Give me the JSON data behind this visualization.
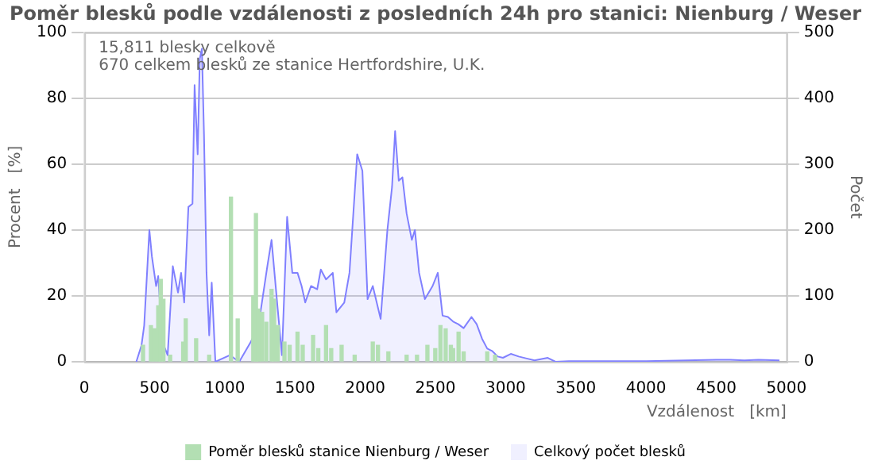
{
  "chart_data": {
    "type": "bar",
    "title": "Poměr blesků podle vzdálenosti z posledních 24h pro stanici: Nienburg / Weser",
    "xlabel": "Vzdálenost   [km]",
    "ylabel": "Procent   [%]",
    "y2label": "Počet",
    "annotations": [
      "15,811 blesky celkově",
      "670 celkem blesků ze stanice Hertfordshire, U.K."
    ],
    "xlim": [
      0,
      5000
    ],
    "xticks": [
      0,
      500,
      1000,
      1500,
      2000,
      2500,
      3000,
      3500,
      4000,
      4500,
      5000
    ],
    "ylim": [
      0,
      100
    ],
    "yticks": [
      0,
      20,
      40,
      60,
      80,
      100
    ],
    "y2lim": [
      0,
      500
    ],
    "y2ticks": [
      0,
      100,
      200,
      300,
      400,
      500
    ],
    "grid": "y",
    "legend": "bottom",
    "series": [
      {
        "name": "Poměr blesků stanice Nienburg / Weser",
        "color": "#b3dfb3",
        "x": [
          418,
          474,
          500,
          526,
          544,
          563,
          611,
          704,
          722,
          796,
          889,
          1044,
          1092,
          1203,
          1222,
          1240,
          1266,
          1296,
          1333,
          1351,
          1377,
          1425,
          1462,
          1518,
          1555,
          1629,
          1666,
          1721,
          1758,
          1832,
          1925,
          2054,
          2091,
          2165,
          2295,
          2369,
          2443,
          2499,
          2536,
          2573,
          2610,
          2626,
          2665,
          2701,
          2869,
          2925
        ],
        "values": [
          5,
          11,
          10,
          17,
          25,
          19,
          2,
          6,
          13,
          7,
          2,
          50,
          13,
          20,
          45,
          16,
          15,
          12,
          22,
          19,
          11,
          6,
          5,
          9,
          5,
          8,
          4,
          11,
          4,
          5,
          2,
          6,
          5,
          3,
          2,
          2,
          5,
          4,
          11,
          10,
          5,
          4,
          9,
          3,
          3,
          2
        ]
      },
      {
        "name": "Celkový počet blesků",
        "type": "area",
        "axis": "y2",
        "color": "#8080ff",
        "x": [
          370,
          407,
          426,
          463,
          481,
          511,
          526,
          556,
          593,
          630,
          667,
          689,
          711,
          741,
          770,
          785,
          807,
          822,
          837,
          852,
          870,
          889,
          907,
          933,
          1037,
          1103,
          1185,
          1240,
          1303,
          1333,
          1377,
          1407,
          1444,
          1481,
          1518,
          1547,
          1573,
          1614,
          1658,
          1684,
          1721,
          1769,
          1795,
          1851,
          1888,
          1943,
          1980,
          2017,
          2054,
          2110,
          2158,
          2191,
          2213,
          2239,
          2265,
          2295,
          2332,
          2354,
          2384,
          2425,
          2480,
          2517,
          2551,
          2589,
          2626,
          2663,
          2701,
          2757,
          2794,
          2832,
          2869,
          2906,
          2944,
          2981,
          3037,
          3093,
          3150,
          3206,
          3300,
          3355,
          3450,
          4000,
          4500,
          4600,
          4700,
          4800,
          4950
        ],
        "values": [
          0,
          25,
          55,
          200,
          160,
          115,
          130,
          30,
          10,
          145,
          105,
          135,
          90,
          235,
          240,
          420,
          315,
          460,
          475,
          345,
          135,
          40,
          120,
          0,
          10,
          0,
          30,
          55,
          145,
          185,
          80,
          10,
          220,
          135,
          135,
          115,
          90,
          115,
          110,
          140,
          125,
          135,
          75,
          90,
          135,
          315,
          290,
          95,
          115,
          65,
          200,
          265,
          350,
          275,
          280,
          225,
          185,
          200,
          135,
          95,
          115,
          135,
          70,
          68,
          61,
          57,
          51,
          68,
          57,
          35,
          20,
          16,
          8,
          6,
          12,
          8,
          5,
          2,
          6,
          0,
          1,
          1,
          3,
          3,
          2,
          3,
          2
        ]
      }
    ]
  }
}
